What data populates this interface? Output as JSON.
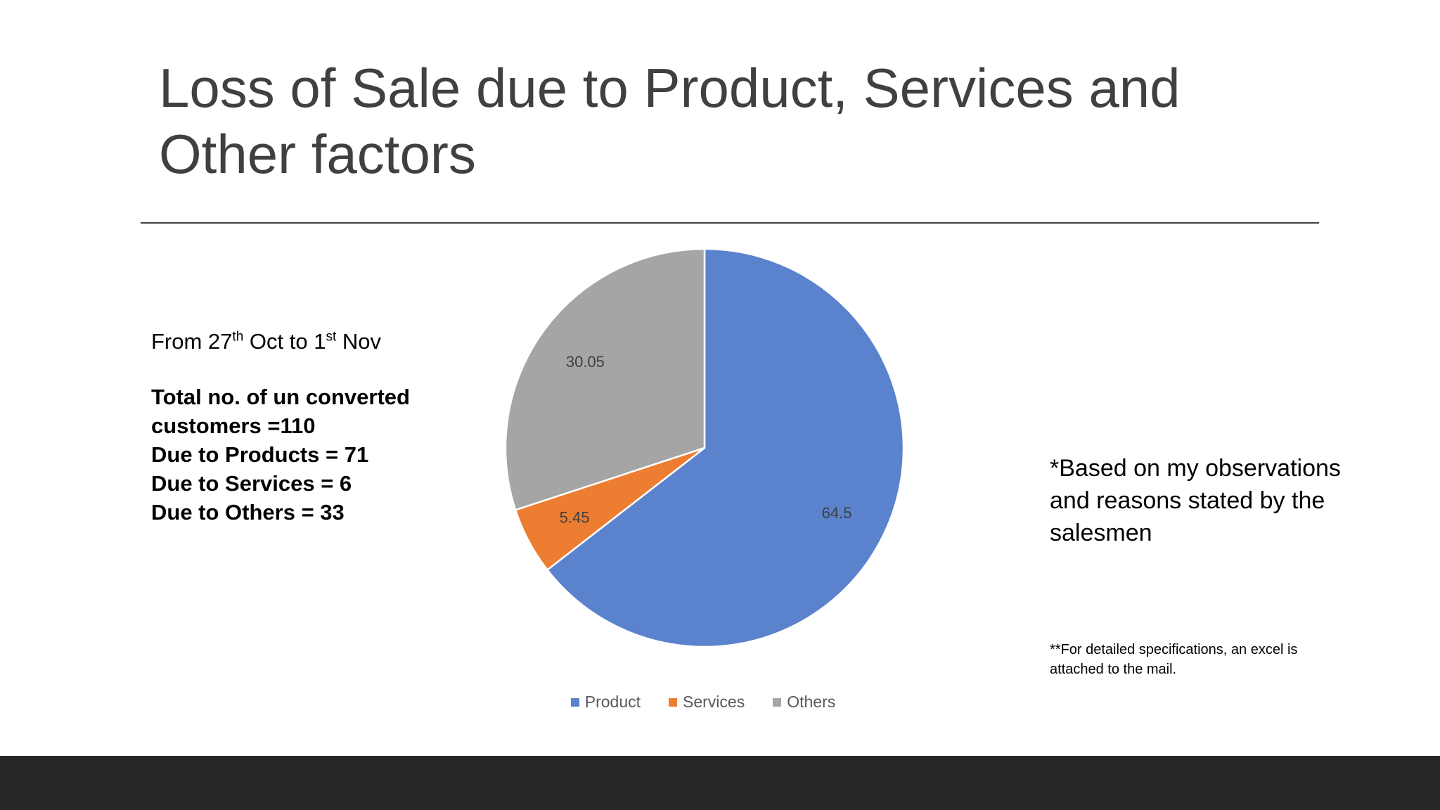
{
  "slide": {
    "title": "Loss of Sale due to Product, Services and Other factors",
    "date_line": {
      "from_text": "From 27",
      "from_sup": "th",
      "middle_text": " Oct to 1",
      "to_sup": "st",
      "end_text": " Nov"
    },
    "stats": [
      "Total no. of un converted",
      "customers =110",
      "Due to Products = 71",
      "Due to Services = 6",
      "Due to Others = 33"
    ],
    "note": "*Based on my observations and reasons stated by the salesmen",
    "small_note": "**For detailed specifications, an excel is attached to the mail."
  },
  "chart_data": {
    "type": "pie",
    "title": "",
    "categories": [
      "Product",
      "Services",
      "Others"
    ],
    "values": [
      64.5,
      5.45,
      30.05
    ],
    "colors": [
      "#5B82CC",
      "#ED7D31",
      "#A5A5A5"
    ],
    "legend_position": "bottom",
    "start_angle": "12 o'clock, clockwise"
  }
}
